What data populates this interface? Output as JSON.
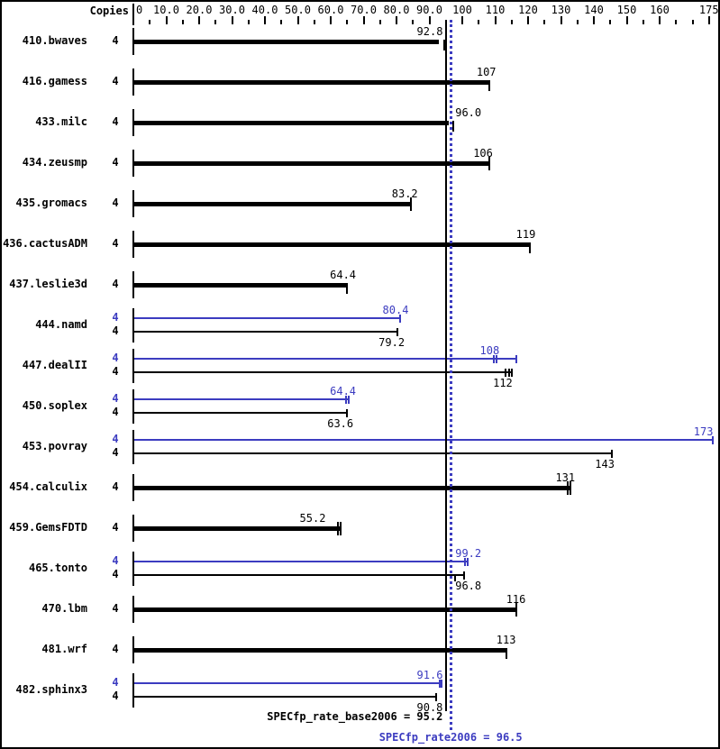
{
  "header": {
    "copies_label": "Copies"
  },
  "colors": {
    "base": "#000000",
    "peak": "#3c3cc0",
    "background": "#ffffff"
  },
  "summary": {
    "base_label": "SPECfp_rate_base2006 = 95.2",
    "base_value": 95.2,
    "peak_label": "SPECfp_rate2006 = 96.5",
    "peak_value": 96.5
  },
  "chart_data": {
    "type": "bar",
    "orientation": "horizontal",
    "xlabel": "",
    "ylabel": "",
    "xlim": [
      0,
      175
    ],
    "grid": false,
    "axis": {
      "major_ticks": [
        {
          "v": 0,
          "label": "0"
        },
        {
          "v": 10,
          "label": "10.0"
        },
        {
          "v": 20,
          "label": "20.0"
        },
        {
          "v": 30,
          "label": "30.0"
        },
        {
          "v": 40,
          "label": "40.0"
        },
        {
          "v": 50,
          "label": "50.0"
        },
        {
          "v": 60,
          "label": "60.0"
        },
        {
          "v": 70,
          "label": "70.0"
        },
        {
          "v": 80,
          "label": "80.0"
        },
        {
          "v": 90,
          "label": "90.0"
        },
        {
          "v": 100,
          "label": "100"
        },
        {
          "v": 110,
          "label": "110"
        },
        {
          "v": 120,
          "label": "120"
        },
        {
          "v": 130,
          "label": "130"
        },
        {
          "v": 140,
          "label": "140"
        },
        {
          "v": 150,
          "label": "150"
        },
        {
          "v": 160,
          "label": "160"
        },
        {
          "v": 175,
          "label": "175"
        }
      ],
      "minor_step": 5
    },
    "series_legend": [
      {
        "name": "SPECfp_rate_base2006",
        "color": "black"
      },
      {
        "name": "SPECfp_rate2006 (peak)",
        "color": "blue"
      }
    ],
    "benchmarks": [
      {
        "name": "410.bwaves",
        "copies": "4",
        "bars": [
          {
            "series": "base",
            "label": "92.8",
            "value": 92.8,
            "end": 92.8,
            "ticks": [
              {
                "v": 94.5,
                "dir": "down"
              }
            ]
          }
        ]
      },
      {
        "name": "416.gamess",
        "copies": "4",
        "bars": [
          {
            "series": "base",
            "label": "107",
            "value": 107,
            "end": 108.3,
            "ticks": [
              {
                "v": 108.3,
                "dir": "down"
              }
            ]
          }
        ]
      },
      {
        "name": "433.milc",
        "copies": "4",
        "bars": [
          {
            "series": "base",
            "label": "96.0",
            "value": 96.0,
            "end": 96.0,
            "ticks": [
              {
                "v": 97.3,
                "dir": "down"
              }
            ]
          }
        ]
      },
      {
        "name": "434.zeusmp",
        "copies": "4",
        "bars": [
          {
            "series": "base",
            "label": "106",
            "value": 106,
            "end": 108.3,
            "ticks": [
              {
                "v": 108.3,
                "dir": "both"
              }
            ]
          }
        ]
      },
      {
        "name": "435.gromacs",
        "copies": "4",
        "bars": [
          {
            "series": "base",
            "label": "83.2",
            "value": 83.2,
            "end": 84.5,
            "ticks": [
              {
                "v": 84.5,
                "dir": "both"
              }
            ]
          }
        ]
      },
      {
        "name": "436.cactusADM",
        "copies": "4",
        "bars": [
          {
            "series": "base",
            "label": "119",
            "value": 119,
            "end": 120.5,
            "ticks": [
              {
                "v": 120.5,
                "dir": "down"
              }
            ]
          }
        ]
      },
      {
        "name": "437.leslie3d",
        "copies": "4",
        "bars": [
          {
            "series": "base",
            "label": "64.4",
            "value": 64.4,
            "end": 64.9,
            "ticks": [
              {
                "v": 64.9,
                "dir": "down"
              }
            ]
          }
        ]
      },
      {
        "name": "444.namd",
        "copies": "4",
        "bars": [
          {
            "series": "peak",
            "label": "80.4",
            "value": 80.4,
            "end": 81.0,
            "ticks": [
              {
                "v": 81.0,
                "dir": "cap"
              }
            ]
          },
          {
            "series": "base",
            "label": "79.2",
            "value": 79.2,
            "end": 80.2,
            "ticks": [
              {
                "v": 80.2,
                "dir": "cap"
              }
            ]
          }
        ]
      },
      {
        "name": "447.dealII",
        "copies": "4",
        "bars": [
          {
            "series": "peak",
            "label": "108",
            "value": 108,
            "end": 116.4,
            "ticks": [
              {
                "v": 116.4,
                "dir": "cap"
              },
              {
                "v": 109.6,
                "dir": "both"
              },
              {
                "v": 110.5,
                "dir": "both"
              }
            ]
          },
          {
            "series": "base",
            "label": "112",
            "value": 112,
            "end": 115.2,
            "ticks": [
              {
                "v": 115.2,
                "dir": "cap"
              },
              {
                "v": 113.2,
                "dir": "both"
              },
              {
                "v": 114.2,
                "dir": "both"
              }
            ]
          }
        ]
      },
      {
        "name": "450.soplex",
        "copies": "4",
        "bars": [
          {
            "series": "peak",
            "label": "64.4",
            "value": 64.4,
            "end": 65.4,
            "ticks": [
              {
                "v": 65.4,
                "dir": "cap"
              },
              {
                "v": 64.7,
                "dir": "both"
              }
            ]
          },
          {
            "series": "base",
            "label": "63.6",
            "value": 63.6,
            "end": 64.8,
            "ticks": [
              {
                "v": 64.8,
                "dir": "cap"
              }
            ]
          }
        ]
      },
      {
        "name": "453.povray",
        "copies": "4",
        "bars": [
          {
            "series": "peak",
            "label": "173",
            "value": 173,
            "end": 176.3,
            "ticks": [
              {
                "v": 176.3,
                "dir": "cap"
              }
            ]
          },
          {
            "series": "base",
            "label": "143",
            "value": 143,
            "end": 145.6,
            "ticks": [
              {
                "v": 145.6,
                "dir": "cap"
              }
            ]
          }
        ]
      },
      {
        "name": "454.calculix",
        "copies": "4",
        "bars": [
          {
            "series": "base",
            "label": "131",
            "value": 131,
            "end": 132.6,
            "ticks": [
              {
                "v": 132.1,
                "dir": "both"
              },
              {
                "v": 132.9,
                "dir": "both"
              }
            ]
          }
        ]
      },
      {
        "name": "459.GemsFDTD",
        "copies": "4",
        "bars": [
          {
            "series": "base",
            "label": "55.2",
            "value": 55.2,
            "end": 62.8,
            "ticks": [
              {
                "v": 62.1,
                "dir": "both"
              },
              {
                "v": 62.9,
                "dir": "both"
              }
            ]
          }
        ]
      },
      {
        "name": "465.tonto",
        "copies": "4",
        "bars": [
          {
            "series": "peak",
            "label": "99.2",
            "value": 99.2,
            "end": 101.6,
            "ticks": [
              {
                "v": 101.6,
                "dir": "cap"
              },
              {
                "v": 100.8,
                "dir": "both"
              }
            ]
          },
          {
            "series": "base",
            "label": "96.8",
            "value": 96.8,
            "end": 100.5,
            "ticks": [
              {
                "v": 100.5,
                "dir": "cap"
              },
              {
                "v": 97.8,
                "dir": "down"
              }
            ]
          }
        ]
      },
      {
        "name": "470.lbm",
        "copies": "4",
        "bars": [
          {
            "series": "base",
            "label": "116",
            "value": 116,
            "end": 116.4,
            "ticks": [
              {
                "v": 116.4,
                "dir": "both"
              }
            ]
          }
        ]
      },
      {
        "name": "481.wrf",
        "copies": "4",
        "bars": [
          {
            "series": "base",
            "label": "113",
            "value": 113,
            "end": 113.4,
            "ticks": [
              {
                "v": 113.4,
                "dir": "down"
              }
            ]
          }
        ]
      },
      {
        "name": "482.sphinx3",
        "copies": "4",
        "bars": [
          {
            "series": "peak",
            "label": "91.6",
            "value": 91.6,
            "end": 93.7,
            "ticks": [
              {
                "v": 93.7,
                "dir": "cap"
              },
              {
                "v": 93.1,
                "dir": "both"
              }
            ]
          },
          {
            "series": "base",
            "label": "90.8",
            "value": 90.8,
            "end": 92.0,
            "ticks": [
              {
                "v": 92.0,
                "dir": "cap"
              }
            ]
          }
        ]
      }
    ]
  }
}
